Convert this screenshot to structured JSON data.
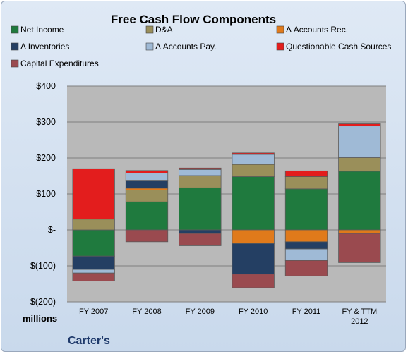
{
  "chart_data": {
    "type": "bar",
    "stacked": true,
    "title": "Free Cash Flow Components",
    "units_label": "millions",
    "brand": "Carter's",
    "categories": [
      "FY 2007",
      "FY 2008",
      "FY 2009",
      "FY 2010",
      "FY 2011",
      "FY & TTM 2012"
    ],
    "ylim": [
      -200,
      400
    ],
    "yticks": [
      -200,
      -100,
      0,
      100,
      200,
      300,
      400
    ],
    "ytick_labels": [
      "$(200)",
      "$(100)",
      "$-",
      "$100",
      "$200",
      "$300",
      "$400"
    ],
    "grid": true,
    "legend_position": "top",
    "series": [
      {
        "name": "Net Income",
        "color": "#1f7a3e",
        "values": [
          -73,
          78,
          117,
          148,
          114,
          163
        ]
      },
      {
        "name": "D&A",
        "color": "#9a8f5a",
        "values": [
          30,
          33,
          34,
          34,
          34,
          38
        ]
      },
      {
        "name": "Δ Accounts Rec.",
        "color": "#e07a1b",
        "values": [
          0,
          5,
          0,
          -38,
          -33,
          -10
        ]
      },
      {
        "name": "Δ Inventories",
        "color": "#243f63",
        "values": [
          -37,
          22,
          -10,
          -85,
          -20,
          0
        ]
      },
      {
        "name": "Δ Accounts Pay.",
        "color": "#9fbad6",
        "values": [
          -10,
          20,
          17,
          28,
          -32,
          88
        ]
      },
      {
        "name": "Questionable Cash Sources",
        "color": "#e31d1d",
        "values": [
          140,
          7,
          4,
          4,
          16,
          6
        ]
      },
      {
        "name": "Capital Expenditures",
        "color": "#9a4a4f",
        "values": [
          -22,
          -33,
          -34,
          -38,
          -43,
          -81
        ]
      }
    ]
  }
}
